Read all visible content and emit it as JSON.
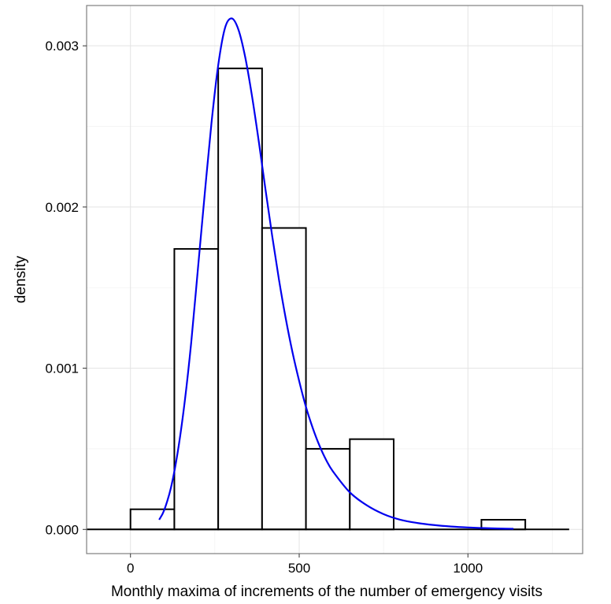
{
  "chart_data": {
    "type": "bar",
    "xlabel": "Monthly maxima of increments of the number of emergency visits",
    "ylabel": "density",
    "xlim": [
      -130,
      1340
    ],
    "ylim": [
      -0.00015,
      0.00325
    ],
    "x_ticks": [
      0,
      500,
      1000
    ],
    "y_ticks": [
      0.0,
      0.001,
      0.002,
      0.003
    ],
    "x_tick_labels": [
      "0",
      "500",
      "1000"
    ],
    "y_tick_labels": [
      "0.000",
      "0.001",
      "0.002",
      "0.003"
    ],
    "grid": true,
    "histogram": {
      "bins": [
        {
          "x0": 0,
          "x1": 130,
          "density": 0.000125
        },
        {
          "x0": 130,
          "x1": 260,
          "density": 0.00174
        },
        {
          "x0": 260,
          "x1": 390,
          "density": 0.00286
        },
        {
          "x0": 390,
          "x1": 520,
          "density": 0.00187
        },
        {
          "x0": 520,
          "x1": 650,
          "density": 0.0005
        },
        {
          "x0": 650,
          "x1": 780,
          "density": 0.00056
        },
        {
          "x0": 780,
          "x1": 910,
          "density": 0.0
        },
        {
          "x0": 910,
          "x1": 1040,
          "density": 0.0
        },
        {
          "x0": 1040,
          "x1": 1170,
          "density": 6e-05
        }
      ],
      "baseline_range": [
        -130,
        1300
      ],
      "outline_color": "#000000",
      "fill_color": "#ffffff"
    },
    "density_curve": {
      "color": "#0000ee",
      "x": [
        85,
        100,
        120,
        140,
        160,
        180,
        200,
        220,
        240,
        260,
        280,
        300,
        320,
        340,
        360,
        380,
        400,
        420,
        440,
        460,
        480,
        500,
        520,
        540,
        560,
        580,
        600,
        650,
        700,
        750,
        800,
        850,
        900,
        950,
        1000,
        1050,
        1100,
        1135
      ],
      "y": [
        6e-05,
        0.00012,
        0.00026,
        0.00048,
        0.00078,
        0.00116,
        0.00162,
        0.00208,
        0.00252,
        0.00288,
        0.00311,
        0.00317,
        0.0031,
        0.00293,
        0.00269,
        0.00241,
        0.00211,
        0.00182,
        0.00155,
        0.00131,
        0.0011,
        0.00092,
        0.00076,
        0.00063,
        0.00052,
        0.00043,
        0.00036,
        0.00023,
        0.00015,
        9.5e-05,
        6e-05,
        4e-05,
        2.7e-05,
        1.8e-05,
        1.2e-05,
        8e-06,
        5e-06,
        4e-06
      ]
    }
  }
}
